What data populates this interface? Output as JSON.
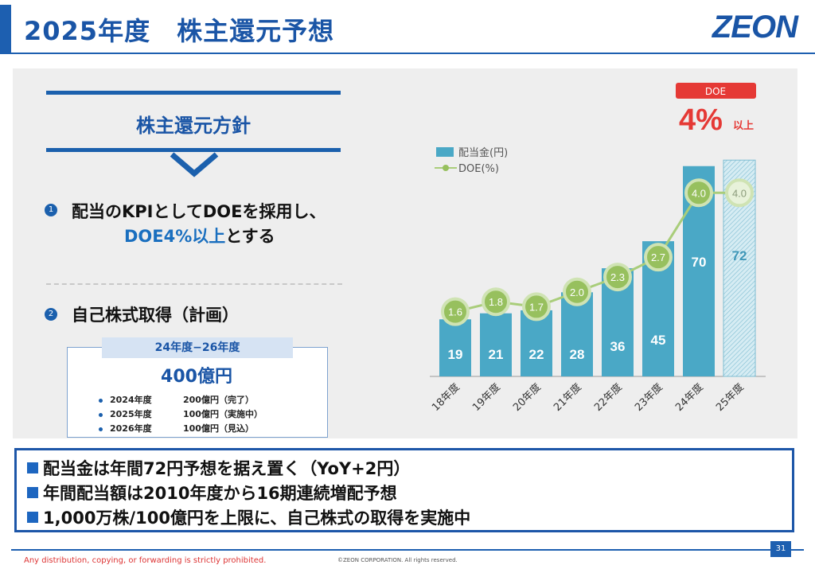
{
  "header": {
    "title": "2025年度　株主還元予想",
    "logo": "ZEON"
  },
  "policy": {
    "title": "株主還元方針",
    "item1": {
      "num": "1",
      "line1": "配当のKPIとしてDOEを採用し、",
      "line2_highlight": "DOE4%以上",
      "line2_rest": "とする"
    },
    "item2": {
      "num": "2",
      "text": "自己株式取得（計画）"
    },
    "buyback": {
      "period": "24年度−26年度",
      "total": "400億円",
      "rows": [
        {
          "year": "2024年度",
          "amount": "200億円（完了）"
        },
        {
          "year": "2025年度",
          "amount": "100億円（実施中）"
        },
        {
          "year": "2026年度",
          "amount": "100億円（見込）"
        }
      ]
    }
  },
  "chart_data": {
    "type": "bar",
    "categories": [
      "18年度",
      "19年度",
      "20年度",
      "21年度",
      "22年度",
      "23年度",
      "24年度",
      "25年度"
    ],
    "series": [
      {
        "name": "配当金(円)",
        "type": "bar",
        "values": [
          19,
          21,
          22,
          28,
          36,
          45,
          70,
          72
        ],
        "forecast_index": 7
      },
      {
        "name": "DOE(%)",
        "type": "line",
        "values": [
          1.6,
          1.8,
          1.7,
          2.0,
          2.3,
          2.7,
          4.0,
          4.0
        ]
      }
    ],
    "y_range_bar": [
      0,
      80
    ],
    "y_range_line": [
      1.0,
      5.0
    ],
    "callout": {
      "label": "DOE",
      "value": "4%",
      "suffix": "以上"
    },
    "colors": {
      "bar": "#4aa8c6",
      "bar_forecast": "#bfe0ea",
      "line": "#a9cd7a",
      "marker": "#97c05e",
      "callout": "#e53935"
    }
  },
  "summary": [
    "配当金は年間72円予想を据え置く（YoY+2円）",
    "年間配当額は2010年度から16期連続増配予想",
    "1,000万株/100億円を上限に、自己株式の取得を実施中"
  ],
  "footer": {
    "notice": "Any distribution, copying, or forwarding is strictly prohibited.",
    "copyright": "©ZEON CORPORATION. All rights reserved.",
    "page": "31"
  }
}
